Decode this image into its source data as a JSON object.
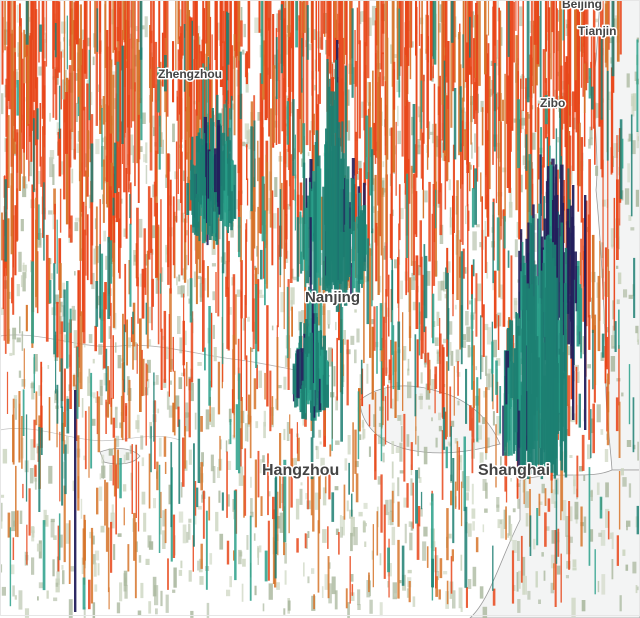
{
  "map": {
    "colors": {
      "background": "#ffffff",
      "land_tint": "#f7f8f4",
      "sea": "#f2f3f3",
      "coast": "#9a9a9a",
      "bar_low": "#c9d3bd",
      "bar_low_dark": "#a9b79d",
      "bar_red": "#e8461a",
      "bar_orange": "#d6742a",
      "bar_teal": "#1d7f72",
      "bar_teal_light": "#2aa08a",
      "bar_navy": "#231f5c"
    },
    "cities": [
      {
        "name": "Beijing"
      },
      {
        "name": "Tianjin"
      },
      {
        "name": "Zhengzhou"
      },
      {
        "name": "Zibo"
      },
      {
        "name": "Nanjing"
      },
      {
        "name": "Hangzhou"
      },
      {
        "name": "Shanghai"
      }
    ]
  }
}
